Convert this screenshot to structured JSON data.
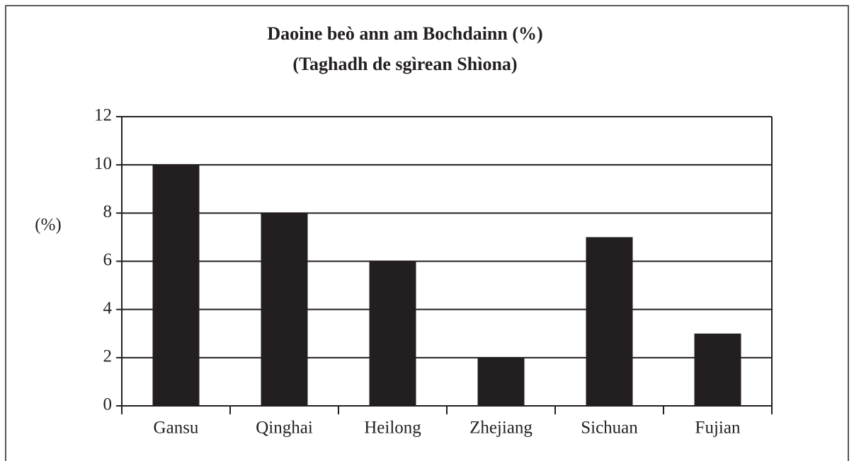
{
  "chart_data": {
    "type": "bar",
    "title": "Daoine beò ann am Bochdainn (%)",
    "subtitle": "(Taghadh de sgìrean Shìona)",
    "y_label": "(%)",
    "categories": [
      "Gansu",
      "Qinghai",
      "Heilong",
      "Zhejiang",
      "Sichuan",
      "Fujian"
    ],
    "values": [
      10,
      8,
      6,
      2,
      7,
      3
    ],
    "color": "#231f20",
    "ylim": [
      0,
      12
    ],
    "yticks": [
      0,
      2,
      4,
      6,
      8,
      10,
      12
    ],
    "grid": true
  }
}
